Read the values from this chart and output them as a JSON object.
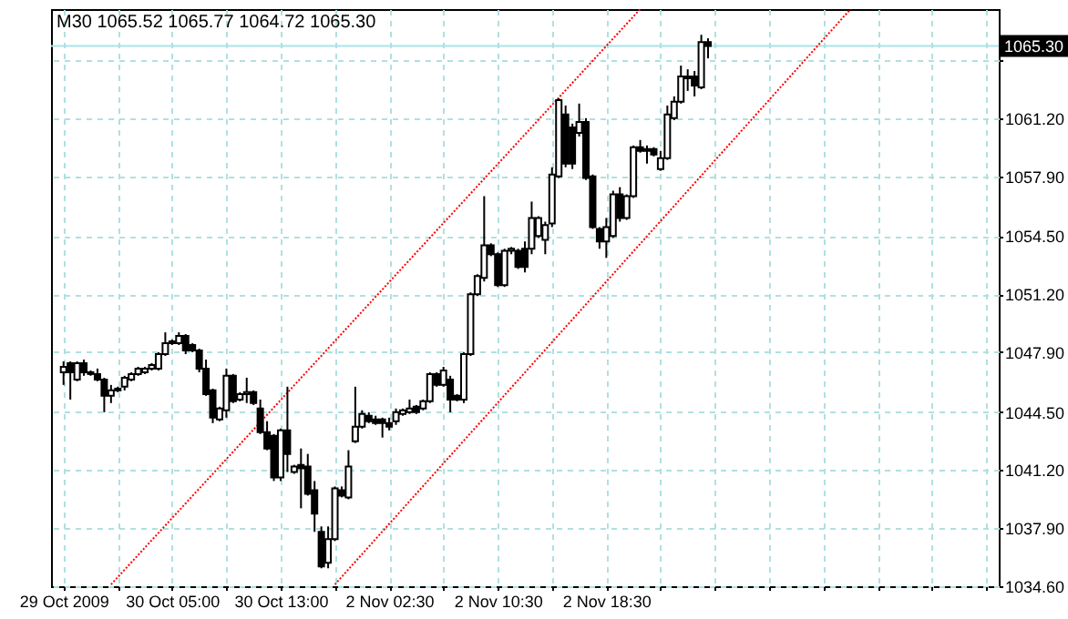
{
  "chart_data": {
    "type": "candlestick",
    "title": "M30 1065.52 1065.77 1064.72 1065.30",
    "categories": [
      "29 Oct 2009",
      null,
      null,
      null,
      null,
      null,
      null,
      null,
      null,
      null,
      null,
      null,
      null,
      null,
      null,
      null,
      "30 Oct 05:00",
      null,
      null,
      null,
      null,
      null,
      null,
      null,
      null,
      null,
      null,
      null,
      null,
      null,
      null,
      null,
      "30 Oct 13:00",
      null,
      null,
      null,
      null,
      null,
      null,
      null,
      null,
      null,
      null,
      null,
      null,
      null,
      null,
      null,
      "2 Nov 02:30",
      null,
      null,
      null,
      null,
      null,
      null,
      null,
      null,
      null,
      null,
      null,
      null,
      null,
      null,
      null,
      "2 Nov 10:30",
      null,
      null,
      null,
      null,
      null,
      null,
      null,
      null,
      null,
      null,
      null,
      null,
      null,
      null,
      null,
      "2 Nov 18:30",
      null,
      null,
      null,
      null,
      null,
      null,
      null,
      null,
      null,
      null,
      null,
      null,
      null,
      null,
      null,
      null,
      null,
      null,
      null,
      null,
      null,
      null,
      null,
      null,
      null,
      null,
      null,
      null,
      null,
      null,
      null,
      null,
      null,
      null,
      null,
      null,
      null,
      null,
      null,
      null,
      null,
      null,
      null,
      null,
      null,
      null,
      null,
      null,
      null,
      null,
      null,
      null,
      null,
      null,
      null,
      null
    ],
    "ohlc": [
      [
        1046.76,
        1047.38,
        1046.04,
        1047.07
      ],
      [
        1047.28,
        1047.38,
        1045.21,
        1046.76
      ],
      [
        1046.35,
        1047.38,
        1046.25,
        1047.28
      ],
      [
        1047.28,
        1047.48,
        1046.56,
        1046.76
      ],
      [
        1046.76,
        1046.86,
        1046.56,
        1046.66
      ],
      [
        1046.66,
        1046.97,
        1046.25,
        1046.35
      ],
      [
        1046.35,
        1046.45,
        1044.49,
        1045.42
      ],
      [
        1045.42,
        1046.04,
        1045.01,
        1045.73
      ],
      [
        1045.73,
        1045.94,
        1045.63,
        1045.83
      ],
      [
        1045.94,
        1046.56,
        1045.73,
        1046.45
      ],
      [
        1046.35,
        1046.76,
        1046.25,
        1046.66
      ],
      [
        1046.66,
        1047.07,
        1046.56,
        1046.97
      ],
      [
        1046.76,
        1047.07,
        1046.66,
        1046.97
      ],
      [
        1046.97,
        1047.28,
        1046.86,
        1047.17
      ],
      [
        1046.97,
        1047.9,
        1046.86,
        1047.79
      ],
      [
        1047.79,
        1049.03,
        1047.69,
        1048.41
      ],
      [
        1048.41,
        1048.62,
        1048.31,
        1048.52
      ],
      [
        1048.41,
        1049.03,
        1048.31,
        1048.83
      ],
      [
        1048.83,
        1048.93,
        1047.79,
        1048.0
      ],
      [
        1048.31,
        1048.41,
        1047.9,
        1048.0
      ],
      [
        1048.0,
        1048.1,
        1046.76,
        1046.97
      ],
      [
        1046.97,
        1047.48,
        1045.42,
        1045.52
      ],
      [
        1045.73,
        1045.83,
        1043.87,
        1044.18
      ],
      [
        1044.08,
        1044.8,
        1043.98,
        1044.7
      ],
      [
        1044.6,
        1046.97,
        1044.18,
        1046.56
      ],
      [
        1046.56,
        1046.66,
        1045.01,
        1045.11
      ],
      [
        1045.21,
        1045.63,
        1045.11,
        1045.52
      ],
      [
        1045.52,
        1046.45,
        1045.01,
        1045.63
      ],
      [
        1045.63,
        1045.73,
        1044.9,
        1045.01
      ],
      [
        1044.7,
        1045.21,
        1043.25,
        1043.36
      ],
      [
        1043.36,
        1043.98,
        1042.33,
        1042.43
      ],
      [
        1043.15,
        1043.25,
        1040.58,
        1040.78
      ],
      [
        1040.78,
        1043.56,
        1040.58,
        1043.46
      ],
      [
        1043.46,
        1045.94,
        1041.09,
        1042.12
      ],
      [
        1041.09,
        1041.5,
        1040.99,
        1041.4
      ],
      [
        1041.5,
        1042.43,
        1039.03,
        1041.3
      ],
      [
        1041.4,
        1042.12,
        1039.75,
        1039.85
      ],
      [
        1040.06,
        1040.58,
        1037.69,
        1038.72
      ],
      [
        1037.69,
        1038.0,
        1035.62,
        1035.73
      ],
      [
        1035.93,
        1038.0,
        1035.62,
        1037.28
      ],
      [
        1037.28,
        1040.27,
        1037.17,
        1040.16
      ],
      [
        1040.06,
        1040.27,
        1039.65,
        1039.75
      ],
      [
        1039.65,
        1042.33,
        1039.54,
        1041.4
      ],
      [
        1042.84,
        1045.94,
        1042.74,
        1043.67
      ],
      [
        1043.67,
        1044.6,
        1043.56,
        1044.39
      ],
      [
        1044.29,
        1044.49,
        1043.87,
        1043.98
      ],
      [
        1044.08,
        1044.29,
        1043.77,
        1043.87
      ],
      [
        1044.08,
        1044.18,
        1043.05,
        1043.87
      ],
      [
        1043.87,
        1044.18,
        1043.46,
        1043.67
      ],
      [
        1043.98,
        1044.7,
        1043.77,
        1044.49
      ],
      [
        1044.39,
        1044.7,
        1044.29,
        1044.6
      ],
      [
        1044.49,
        1045.21,
        1044.39,
        1044.7
      ],
      [
        1044.8,
        1044.9,
        1044.39,
        1044.49
      ],
      [
        1044.7,
        1045.21,
        1044.6,
        1045.11
      ],
      [
        1045.11,
        1046.76,
        1045.01,
        1046.66
      ],
      [
        1046.66,
        1046.76,
        1045.94,
        1046.04
      ],
      [
        1046.04,
        1047.07,
        1045.94,
        1046.86
      ],
      [
        1046.35,
        1046.56,
        1044.49,
        1045.21
      ],
      [
        1045.42,
        1045.52,
        1045.11,
        1045.21
      ],
      [
        1045.21,
        1047.9,
        1045.01,
        1047.79
      ],
      [
        1047.79,
        1051.3,
        1047.69,
        1051.2
      ],
      [
        1051.2,
        1052.33,
        1051.09,
        1052.23
      ],
      [
        1052.12,
        1056.77,
        1051.92,
        1053.98
      ],
      [
        1053.98,
        1054.09,
        1053.36,
        1053.47
      ],
      [
        1053.47,
        1053.57,
        1051.61,
        1051.71
      ],
      [
        1051.71,
        1053.78,
        1051.61,
        1053.67
      ],
      [
        1053.67,
        1053.88,
        1053.47,
        1053.78
      ],
      [
        1053.67,
        1053.78,
        1052.64,
        1052.74
      ],
      [
        1053.78,
        1054.19,
        1052.43,
        1052.74
      ],
      [
        1053.78,
        1056.46,
        1053.47,
        1055.53
      ],
      [
        1054.5,
        1055.63,
        1054.4,
        1055.53
      ],
      [
        1054.29,
        1055.32,
        1053.47,
        1055.12
      ],
      [
        1055.22,
        1058.41,
        1055.01,
        1058.0
      ],
      [
        1057.9,
        1062.33,
        1057.8,
        1062.23
      ],
      [
        1061.41,
        1061.92,
        1058.41,
        1058.62
      ],
      [
        1060.68,
        1060.89,
        1058.31,
        1058.62
      ],
      [
        1060.37,
        1062.03,
        1060.16,
        1060.99
      ],
      [
        1060.99,
        1061.2,
        1057.69,
        1057.8
      ],
      [
        1057.9,
        1058.0,
        1054.91,
        1055.01
      ],
      [
        1054.91,
        1055.01,
        1053.78,
        1054.19
      ],
      [
        1054.19,
        1055.53,
        1053.26,
        1055.01
      ],
      [
        1054.5,
        1057.08,
        1054.4,
        1056.87
      ],
      [
        1056.87,
        1057.28,
        1055.32,
        1055.53
      ],
      [
        1055.53,
        1056.87,
        1055.42,
        1056.77
      ],
      [
        1056.77,
        1059.65,
        1056.67,
        1059.55
      ],
      [
        1059.55,
        1059.96,
        1059.24,
        1059.34
      ],
      [
        1059.45,
        1059.65,
        1058.62,
        1059.34
      ],
      [
        1059.45,
        1059.55,
        1059.03,
        1059.14
      ],
      [
        1058.31,
        1059.34,
        1058.21,
        1058.93
      ],
      [
        1058.93,
        1061.92,
        1058.83,
        1061.41
      ],
      [
        1061.2,
        1062.44,
        1061.09,
        1062.13
      ],
      [
        1062.13,
        1064.19,
        1062.03,
        1063.57
      ],
      [
        1063.47,
        1063.98,
        1062.75,
        1063.57
      ],
      [
        1063.57,
        1063.88,
        1062.44,
        1063.06
      ],
      [
        1062.95,
        1065.94,
        1062.85,
        1065.53
      ],
      [
        1065.53,
        1065.74,
        1064.6,
        1065.3
      ],
      null,
      null,
      null,
      null,
      null,
      null,
      null,
      null,
      null,
      null,
      null,
      null,
      null,
      null,
      null,
      null,
      null,
      null,
      null,
      null,
      null,
      null,
      null,
      null,
      null,
      null,
      null,
      null,
      null,
      null,
      null,
      null,
      null,
      null,
      null,
      null,
      null,
      null,
      null,
      null,
      null
    ],
    "series": [
      {
        "type": "line",
        "color": "#ff0000",
        "line_style": "dotted",
        "values": [
          null,
          null,
          null,
          null,
          null,
          null,
          null,
          1034.7,
          null,
          null,
          null,
          null,
          null,
          null,
          null,
          null,
          null,
          null,
          null,
          null,
          null,
          null,
          null,
          null,
          null,
          null,
          null,
          null,
          null,
          null,
          null,
          null,
          null,
          null,
          null,
          null,
          null,
          null,
          null,
          null,
          null,
          null,
          null,
          null,
          null,
          null,
          null,
          null,
          null,
          null,
          null,
          null,
          null,
          null,
          null,
          null,
          null,
          null,
          null,
          null,
          null,
          null,
          null,
          null,
          null,
          null,
          null,
          null,
          null,
          null,
          null,
          null,
          null,
          null,
          null,
          null,
          null,
          null,
          null,
          null,
          null,
          null,
          null,
          null,
          null,
          1067.4,
          null,
          null,
          null,
          null,
          null,
          null,
          null,
          null,
          null,
          null,
          null,
          null,
          null,
          null,
          null,
          null,
          null,
          null,
          null,
          null,
          null,
          null,
          null,
          null,
          null,
          null,
          null,
          null,
          null,
          null,
          null,
          null,
          null,
          null,
          null,
          null,
          null,
          null,
          null,
          null,
          null,
          null,
          null,
          null,
          null,
          null,
          null,
          null,
          null,
          null,
          null
        ]
      },
      {
        "type": "line",
        "color": "#ff0000",
        "line_style": "dotted",
        "values": [
          null,
          null,
          null,
          null,
          null,
          null,
          null,
          null,
          null,
          null,
          null,
          null,
          null,
          null,
          null,
          null,
          null,
          null,
          null,
          null,
          null,
          null,
          null,
          null,
          null,
          null,
          null,
          null,
          null,
          null,
          null,
          null,
          null,
          null,
          null,
          null,
          null,
          null,
          null,
          null,
          1034.7,
          null,
          null,
          null,
          null,
          null,
          null,
          null,
          null,
          null,
          null,
          null,
          null,
          null,
          null,
          null,
          null,
          null,
          null,
          null,
          null,
          null,
          null,
          null,
          null,
          null,
          null,
          null,
          null,
          null,
          null,
          null,
          null,
          null,
          null,
          null,
          null,
          null,
          null,
          null,
          null,
          null,
          null,
          null,
          null,
          null,
          null,
          null,
          null,
          null,
          null,
          null,
          null,
          null,
          null,
          null,
          null,
          null,
          null,
          null,
          null,
          null,
          null,
          null,
          null,
          null,
          null,
          null,
          null,
          null,
          null,
          null,
          null,
          null,
          null,
          null,
          1067.4,
          null,
          null,
          null,
          null,
          null,
          null,
          null,
          null,
          null,
          null,
          null,
          null,
          null,
          null,
          null,
          null,
          null,
          null,
          null,
          null
        ]
      }
    ],
    "ylim": [
      1034.6,
      1067.4
    ],
    "yticks": [
      {
        "value": 1034.6,
        "label": "1034.60"
      },
      {
        "value": 1037.9,
        "label": "1037.90"
      },
      {
        "value": 1041.2,
        "label": "1041.20"
      },
      {
        "value": 1044.5,
        "label": "1044.50"
      },
      {
        "value": 1047.9,
        "label": "1047.90"
      },
      {
        "value": 1051.2,
        "label": "1051.20"
      },
      {
        "value": 1054.5,
        "label": "1054.50"
      },
      {
        "value": 1057.9,
        "label": "1057.90"
      },
      {
        "value": 1061.2,
        "label": "1061.20"
      },
      {
        "value": 1064.5,
        "label": null
      }
    ],
    "ref_lines": [
      {
        "axis": "y",
        "value": 1065.3,
        "label": "1065.30",
        "color": "#a8e4e8"
      }
    ],
    "grid": true
  }
}
